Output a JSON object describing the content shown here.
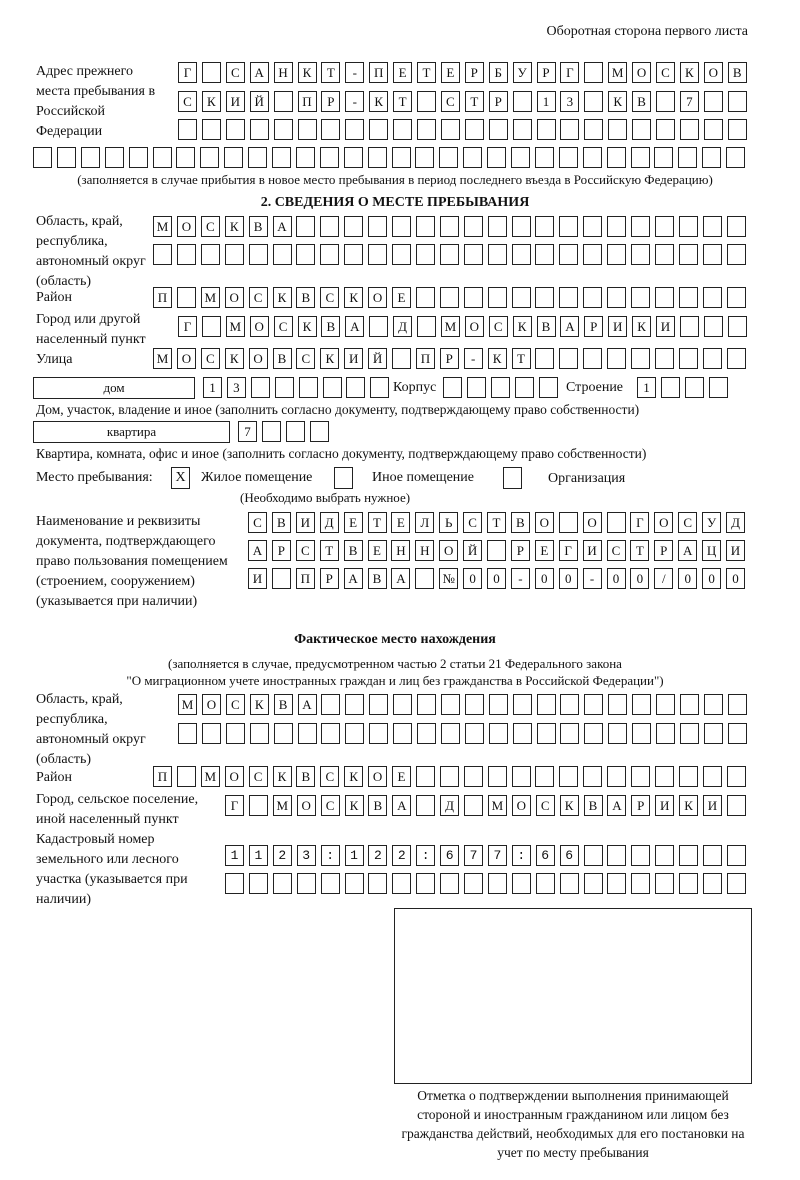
{
  "header": {
    "page_side": "Оборотная сторона первого листа"
  },
  "prev_address": {
    "label": "Адрес прежнего места пребывания в Российской Федерации",
    "rows": [
      "Г САНКТ-ПЕТЕРБУРГ МОСКОВ",
      "СКИЙ ПР-КТ СТР 13 КВ 7",
      "",
      ""
    ],
    "note": "(заполняется в случае прибытия в новое место пребывания в период последнего въезда в Российскую Федерацию)"
  },
  "section2": {
    "title": "2. СВЕДЕНИЯ О МЕСТЕ ПРЕБЫВАНИЯ",
    "region_label": "Область, край, республика, автономный округ (область)",
    "region_rows": [
      "МОСКВА",
      ""
    ],
    "district_label": "Район",
    "district": "П МОСКВСКОЕ",
    "city_label": "Город или другой населенный пункт",
    "city": "Г МОСКВА Д МОСКВАРИКИ",
    "street_label": "Улица",
    "street": "МОСКОВСКИЙ ПР-КТ",
    "house_type": "дом",
    "house_number": "13",
    "korpus_label": "Корпус",
    "korpus": "",
    "building_label": "Строение",
    "building": "1",
    "house_caption": "Дом, участок, владение и иное (заполнить согласно документу, подтверждающему право собственности)",
    "flat_type": "квартира",
    "flat_number": "7",
    "flat_caption": "Квартира, комната, офис и иное (заполнить согласно документу, подтверждающему право собственности)",
    "stay_place_label": "Место пребывания:",
    "options": [
      {
        "label": "Жилое помещение",
        "mark": "X"
      },
      {
        "label": "Иное помещение",
        "mark": ""
      },
      {
        "label": "Организация",
        "mark": ""
      }
    ],
    "choose_note": "(Необходимо выбрать нужное)",
    "doc_label": "Наименование и реквизиты документа, подтверждающего право пользования помещением (строением, сооружением) (указывается при наличии)",
    "doc_rows": [
      "СВИДЕТЕЛЬСТВО О ГОСУД",
      "АРСТВЕННОЙ РЕГИСТРАЦИ",
      "И ПРАВА №00-00-00/000"
    ]
  },
  "actual": {
    "title": "Фактическое место нахождения",
    "note1": "(заполняется в случае, предусмотренном частью 2 статьи 21 Федерального закона",
    "note2": "\"О миграционном учете иностранных граждан и лиц без гражданства в Российской Федерации\")",
    "region_label": "Область, край, республика, автономный округ (область)",
    "region_rows": [
      "МОСКВА",
      ""
    ],
    "district_label": "Район",
    "district": "П МОСКВСКОЕ",
    "city_label": "Город, сельское поселение, иной населенный пункт",
    "city": "Г МОСКВА Д МОСКВАРИКИ",
    "cadastre_label": "Кадастровый номер земельного или лесного участка (указывается при наличии)",
    "cadastre_rows": [
      "1123:122:677:66",
      ""
    ]
  },
  "stamp": {
    "caption": "Отметка о подтверждении выполнения принимающей стороной и иностранным гражданином или лицом без гражданства действий, необходимых для его постановки на учет по месту пребывания"
  }
}
